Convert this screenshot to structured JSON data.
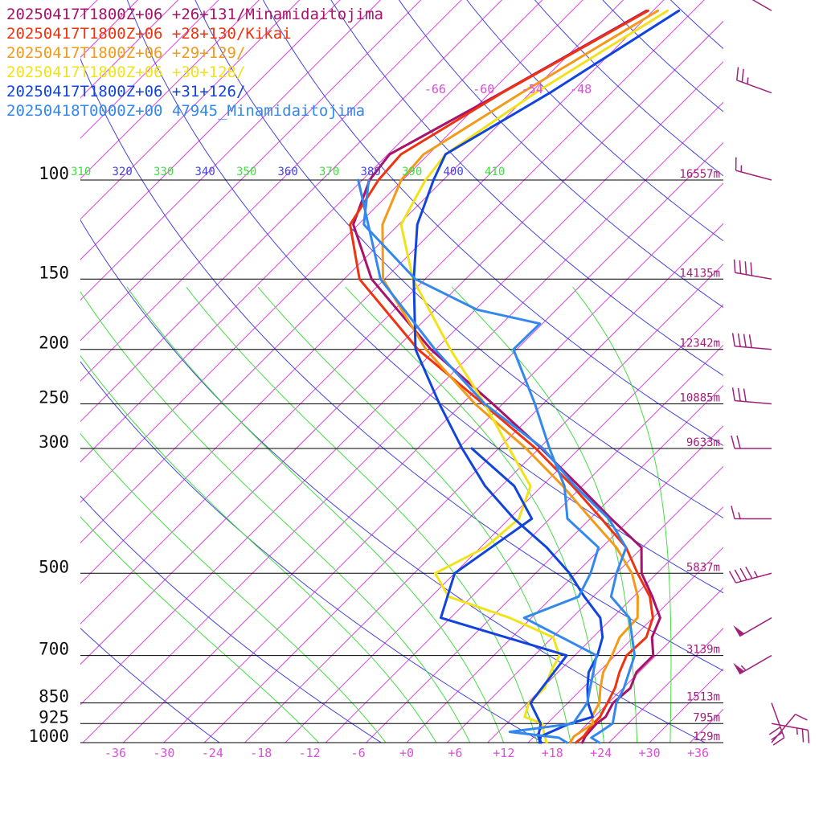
{
  "chart_data": {
    "type": "line",
    "title": "",
    "xlabel": "",
    "ylabel": "",
    "legend_position": "top-left",
    "x_axis": {
      "units": "degC",
      "ticks": [
        -36,
        -30,
        -24,
        -18,
        -12,
        -6,
        0,
        6,
        12,
        18,
        24,
        30,
        36
      ],
      "tick_labels": [
        "-36",
        "-30",
        "-24",
        "-18",
        "-12",
        "-6",
        "+0",
        "+6",
        "+12",
        "+18",
        "+24",
        "+30",
        "+36"
      ],
      "color": "#d94fd9"
    },
    "y_axis": {
      "units": "hPa",
      "scale": "log",
      "ylim": [
        1000,
        100
      ],
      "levels": [
        100,
        150,
        200,
        250,
        300,
        500,
        700,
        850,
        925,
        1000
      ],
      "level_labels": [
        "100",
        "150",
        "200",
        "250",
        "300",
        "500",
        "700",
        "850",
        "925",
        "1000"
      ]
    },
    "upper_temp_labels": [
      "-66",
      "-60",
      "-54",
      "-48"
    ],
    "theta_labels": [
      {
        "text": "310",
        "color": "#44dd44"
      },
      {
        "text": "320",
        "color": "#4444dd"
      },
      {
        "text": "330",
        "color": "#44dd44"
      },
      {
        "text": "340",
        "color": "#4444dd"
      },
      {
        "text": "350",
        "color": "#44dd44"
      },
      {
        "text": "360",
        "color": "#4444dd"
      },
      {
        "text": "370",
        "color": "#44dd44"
      },
      {
        "text": "380",
        "color": "#4444dd"
      },
      {
        "text": "390",
        "color": "#44dd44"
      },
      {
        "text": "400",
        "color": "#4444dd"
      },
      {
        "text": "410",
        "color": "#44dd44"
      }
    ],
    "height_labels": [
      "16557m",
      "14135m",
      "12342m",
      "10885m",
      "9633m",
      "5837m",
      "3139m",
      "1513m",
      "795m",
      "129m"
    ],
    "colors": {
      "isotherm": "#dd44dd",
      "dry_adiabat": "#4444dd",
      "moist_adiabat": "#44dd44",
      "isobar": "#000000",
      "wind_barb": "#a0207a"
    },
    "series": [
      {
        "name": "20250417T1800Z+06 +26+131/Minamidaitojima",
        "color": "#a8126a",
        "temperature": [
          {
            "p": 1000,
            "t": 21.7
          },
          {
            "p": 975,
            "t": 21.3
          },
          {
            "p": 925,
            "t": 21.1
          },
          {
            "p": 900,
            "t": 21.4
          },
          {
            "p": 850,
            "t": 20.6
          },
          {
            "p": 800,
            "t": 20.9
          },
          {
            "p": 750,
            "t": 19.7
          },
          {
            "p": 700,
            "t": 19.7
          },
          {
            "p": 650,
            "t": 17.3
          },
          {
            "p": 600,
            "t": 15.9
          },
          {
            "p": 550,
            "t": 12.3
          },
          {
            "p": 500,
            "t": 8.1
          },
          {
            "p": 450,
            "t": 4.9
          },
          {
            "p": 400,
            "t": -2.4
          },
          {
            "p": 350,
            "t": -10.4
          },
          {
            "p": 300,
            "t": -19.7
          },
          {
            "p": 250,
            "t": -31.2
          },
          {
            "p": 200,
            "t": -45.6
          },
          {
            "p": 150,
            "t": -61.6
          },
          {
            "p": 120,
            "t": -70.6
          },
          {
            "p": 100,
            "t": -74.1
          },
          {
            "p": 90,
            "t": -74.8
          },
          {
            "p": 70,
            "t": -68.6
          },
          {
            "p": 50,
            "t": -60.8
          }
        ]
      },
      {
        "name": "20250417T1800Z+06 +28+130/Kikai",
        "color": "#ee3311",
        "temperature": [
          {
            "p": 1000,
            "t": 20.9
          },
          {
            "p": 975,
            "t": 21.1
          },
          {
            "p": 925,
            "t": 20.7
          },
          {
            "p": 900,
            "t": 20.7
          },
          {
            "p": 850,
            "t": 19.9
          },
          {
            "p": 800,
            "t": 19.0
          },
          {
            "p": 750,
            "t": 17.6
          },
          {
            "p": 700,
            "t": 16.4
          },
          {
            "p": 650,
            "t": 16.6
          },
          {
            "p": 600,
            "t": 15.0
          },
          {
            "p": 550,
            "t": 12.0
          },
          {
            "p": 500,
            "t": 7.6
          },
          {
            "p": 450,
            "t": 3.0
          },
          {
            "p": 400,
            "t": -3.6
          },
          {
            "p": 350,
            "t": -11.2
          },
          {
            "p": 300,
            "t": -20.4
          },
          {
            "p": 250,
            "t": -32.4
          },
          {
            "p": 200,
            "t": -47.2
          },
          {
            "p": 150,
            "t": -63.1
          },
          {
            "p": 120,
            "t": -71.0
          },
          {
            "p": 100,
            "t": -73.0
          },
          {
            "p": 90,
            "t": -73.4
          },
          {
            "p": 70,
            "t": -68.5
          },
          {
            "p": 50,
            "t": -60.6
          }
        ]
      },
      {
        "name": "20250417T1800Z+06 +29+129/",
        "color": "#f39a18",
        "temperature": [
          {
            "p": 1000,
            "t": 20.2
          },
          {
            "p": 975,
            "t": 19.9
          },
          {
            "p": 925,
            "t": 20.7
          },
          {
            "p": 900,
            "t": 19.7
          },
          {
            "p": 850,
            "t": 18.9
          },
          {
            "p": 800,
            "t": 17.2
          },
          {
            "p": 750,
            "t": 15.6
          },
          {
            "p": 700,
            "t": 14.6
          },
          {
            "p": 650,
            "t": 13.3
          },
          {
            "p": 600,
            "t": 13.1
          },
          {
            "p": 550,
            "t": 10.5
          },
          {
            "p": 500,
            "t": 6.9
          },
          {
            "p": 450,
            "t": 1.8
          },
          {
            "p": 400,
            "t": -4.9
          },
          {
            "p": 350,
            "t": -12.4
          },
          {
            "p": 300,
            "t": -21.6
          },
          {
            "p": 250,
            "t": -33.4
          },
          {
            "p": 200,
            "t": -46.2
          },
          {
            "p": 150,
            "t": -60.2
          },
          {
            "p": 120,
            "t": -67.0
          },
          {
            "p": 100,
            "t": -70.2
          },
          {
            "p": 90,
            "t": -70.6
          },
          {
            "p": 70,
            "t": -66.1
          },
          {
            "p": 50,
            "t": -59.4
          }
        ]
      },
      {
        "name": "20250417T1800Z+06 +30+128/",
        "color": "#f2e21a",
        "temperature": [
          {
            "p": 1000,
            "t": 17.3
          },
          {
            "p": 975,
            "t": 16.3
          },
          {
            "p": 925,
            "t": 14.4
          },
          {
            "p": 900,
            "t": 11.4
          },
          {
            "p": 850,
            "t": 10.2
          },
          {
            "p": 800,
            "t": 10.3
          },
          {
            "p": 750,
            "t": 9.1
          },
          {
            "p": 700,
            "t": 8.1
          },
          {
            "p": 650,
            "t": 5.1
          },
          {
            "p": 600,
            "t": -2.7
          },
          {
            "p": 550,
            "t": -12.9
          },
          {
            "p": 500,
            "t": -17.4
          },
          {
            "p": 450,
            "t": -14.4
          },
          {
            "p": 400,
            "t": -13.8
          },
          {
            "p": 350,
            "t": -16.4
          },
          {
            "p": 300,
            "t": -23.7
          },
          {
            "p": 250,
            "t": -32.2
          },
          {
            "p": 200,
            "t": -43.2
          },
          {
            "p": 150,
            "t": -56.5
          },
          {
            "p": 120,
            "t": -64.7
          },
          {
            "p": 100,
            "t": -67.2
          },
          {
            "p": 90,
            "t": -67.9
          },
          {
            "p": 70,
            "t": -64.4
          },
          {
            "p": 50,
            "t": -58.2
          }
        ]
      },
      {
        "name": "20250417T1800Z+06 +31+126/",
        "color": "#1144dd",
        "temperature": [
          {
            "p": 1000,
            "t": 16.4
          },
          {
            "p": 975,
            "t": 15.8
          },
          {
            "p": 925,
            "t": 17.8
          },
          {
            "p": 900,
            "t": 19.8
          },
          {
            "p": 850,
            "t": 17.5
          },
          {
            "p": 800,
            "t": 15.6
          },
          {
            "p": 750,
            "t": 13.8
          },
          {
            "p": 700,
            "t": 12.8
          },
          {
            "p": 650,
            "t": 11.2
          },
          {
            "p": 600,
            "t": 8.5
          },
          {
            "p": 550,
            "t": 3.9
          },
          {
            "p": 500,
            "t": -0.8
          },
          {
            "p": 450,
            "t": -6.8
          },
          {
            "p": 400,
            "t": -14.4
          },
          {
            "p": 350,
            "t": -22.0
          },
          {
            "p": 300,
            "t": -29.5
          },
          {
            "p": 250,
            "t": -37.8
          },
          {
            "p": 200,
            "t": -47.5
          },
          {
            "p": 150,
            "t": -56.4
          },
          {
            "p": 120,
            "t": -62.7
          },
          {
            "p": 100,
            "t": -66.2
          },
          {
            "p": 90,
            "t": -67.9
          },
          {
            "p": 70,
            "t": -62.6
          },
          {
            "p": 50,
            "t": -56.8
          }
        ],
        "dewpoint": [
          {
            "p": 1000,
            "t": 16.6
          },
          {
            "p": 975,
            "t": 15.5
          },
          {
            "p": 925,
            "t": 14.2
          },
          {
            "p": 850,
            "t": 10.4
          },
          {
            "p": 700,
            "t": 9.0
          },
          {
            "p": 600,
            "t": -11.2
          },
          {
            "p": 500,
            "t": -15.0
          },
          {
            "p": 400,
            "t": -12.2
          },
          {
            "p": 350,
            "t": -18.4
          },
          {
            "p": 300,
            "t": -28.3
          }
        ]
      },
      {
        "name": "20250418T0000Z+00 47945_Minamidaitojima",
        "color": "#3388ee",
        "temperature": [
          {
            "p": 1000,
            "t": 23.8
          },
          {
            "p": 980,
            "t": 22.2
          },
          {
            "p": 957,
            "t": 22.6
          },
          {
            "p": 925,
            "t": 23.1
          },
          {
            "p": 850,
            "t": 21.0
          },
          {
            "p": 800,
            "t": 20.1
          },
          {
            "p": 700,
            "t": 17.4
          },
          {
            "p": 600,
            "t": 12.1
          },
          {
            "p": 550,
            "t": 7.2
          },
          {
            "p": 500,
            "t": 5.0
          },
          {
            "p": 450,
            "t": 3.0
          },
          {
            "p": 400,
            "t": -2.7
          },
          {
            "p": 350,
            "t": -10.9
          },
          {
            "p": 300,
            "t": -19.5
          },
          {
            "p": 250,
            "t": -32.2
          },
          {
            "p": 200,
            "t": -45.1
          },
          {
            "p": 150,
            "t": -60.5
          },
          {
            "p": 100,
            "t": -75.5
          }
        ],
        "dewpoint": [
          {
            "p": 1000,
            "t": 19.8
          },
          {
            "p": 980,
            "t": 18.2
          },
          {
            "p": 957,
            "t": 11.4
          },
          {
            "p": 925,
            "t": 18.2
          },
          {
            "p": 850,
            "t": 17.4
          },
          {
            "p": 700,
            "t": 12.7
          },
          {
            "p": 600,
            "t": -0.9
          },
          {
            "p": 550,
            "t": 3.2
          },
          {
            "p": 500,
            "t": 1.8
          },
          {
            "p": 450,
            "t": -0.4
          },
          {
            "p": 400,
            "t": -7.8
          },
          {
            "p": 350,
            "t": -12.2
          },
          {
            "p": 300,
            "t": -18.7
          },
          {
            "p": 250,
            "t": -26.0
          },
          {
            "p": 200,
            "t": -35.4
          },
          {
            "p": 180,
            "t": -35.3
          },
          {
            "p": 170,
            "t": -44.8
          },
          {
            "p": 150,
            "t": -56.2
          },
          {
            "p": 120,
            "t": -69.3
          },
          {
            "p": 100,
            "t": -74.2
          }
        ]
      }
    ],
    "wind_profile": [
      {
        "p": 1000,
        "dir": 40,
        "speed_kt": 10
      },
      {
        "p": 925,
        "dir": 100,
        "speed_kt": 25
      },
      {
        "p": 850,
        "dir": 160,
        "speed_kt": 30
      },
      {
        "p": 700,
        "dir": 240,
        "speed_kt": 55
      },
      {
        "p": 600,
        "dir": 240,
        "speed_kt": 50
      },
      {
        "p": 500,
        "dir": 255,
        "speed_kt": 45
      },
      {
        "p": 400,
        "dir": 270,
        "speed_kt": 15
      },
      {
        "p": 300,
        "dir": 270,
        "speed_kt": 20
      },
      {
        "p": 250,
        "dir": 275,
        "speed_kt": 30
      },
      {
        "p": 200,
        "dir": 275,
        "speed_kt": 40
      },
      {
        "p": 150,
        "dir": 280,
        "speed_kt": 40
      },
      {
        "p": 100,
        "dir": 285,
        "speed_kt": 15
      },
      {
        "p": 70,
        "dir": 290,
        "speed_kt": 25
      },
      {
        "p": 50,
        "dir": 300,
        "speed_kt": 15
      }
    ]
  }
}
